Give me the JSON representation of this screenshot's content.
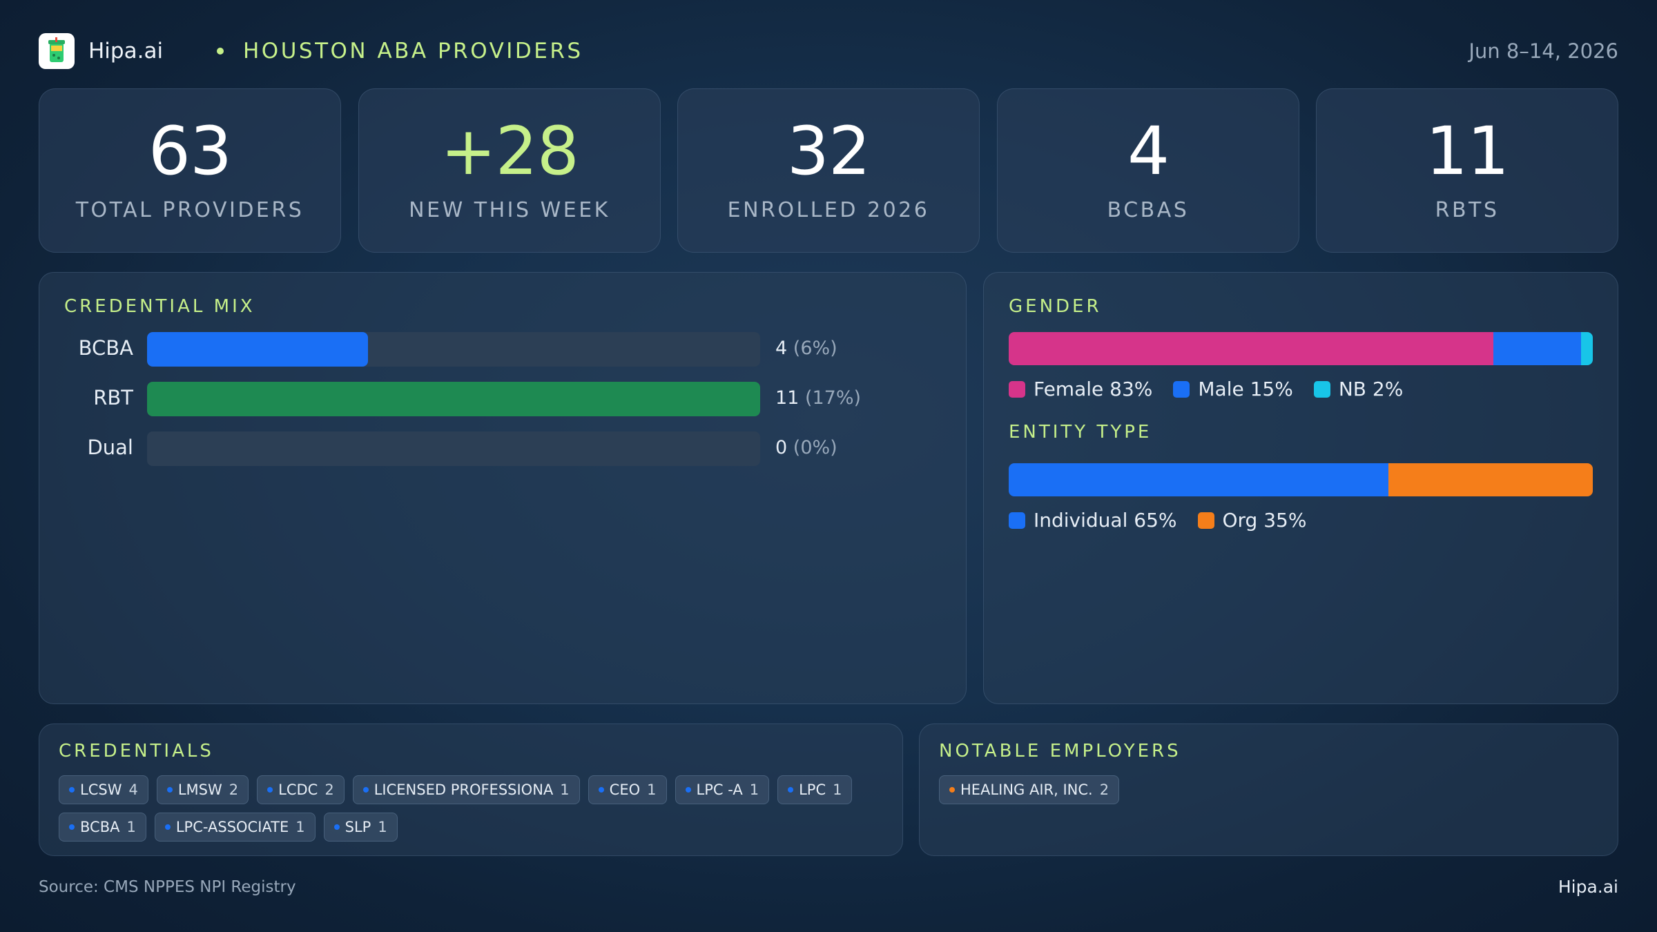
{
  "header": {
    "brand": "Hipa.ai",
    "title": "HOUSTON ABA PROVIDERS",
    "date_range": "Jun 8–14, 2026",
    "logo_icon": "cup-icon"
  },
  "kpis": [
    {
      "value": "63",
      "label": "TOTAL  PROVIDERS"
    },
    {
      "value": "+28",
      "label": "NEW THIS WEEK"
    },
    {
      "value": "32",
      "label": "ENROLLED 2026"
    },
    {
      "value": "4",
      "label": "BCBAS"
    },
    {
      "value": "11",
      "label": "RBTS"
    }
  ],
  "credential_mix": {
    "title": "CREDENTIAL  MIX",
    "rows": [
      {
        "name": "BCBA",
        "count": "4",
        "pct": "(6%)",
        "fill": 0.36,
        "color": "#1a6ff5"
      },
      {
        "name": "RBT",
        "count": "11",
        "pct": "(17%)",
        "fill": 1.0,
        "color": "#1e8a52"
      },
      {
        "name": "Dual",
        "count": "0",
        "pct": "(0%)",
        "fill": 0.0,
        "color": "#1a6ff5"
      }
    ]
  },
  "gender": {
    "title": "GENDER",
    "segments": [
      {
        "label": "Female 83%",
        "share": 83,
        "color": "#d6348a"
      },
      {
        "label": "Male 15%",
        "share": 15,
        "color": "#1a6ff5"
      },
      {
        "label": "NB 2%",
        "share": 2,
        "color": "#18c5e8"
      }
    ]
  },
  "entity_type": {
    "title": "ENTITY  TYPE",
    "segments": [
      {
        "label": "Individual 65%",
        "share": 65,
        "color": "#1a6ff5"
      },
      {
        "label": "Org 35%",
        "share": 35,
        "color": "#f57e1a"
      }
    ]
  },
  "credentials": {
    "title": "CREDENTIALS",
    "items": [
      {
        "name": "LCSW",
        "count": "4"
      },
      {
        "name": "LMSW",
        "count": "2"
      },
      {
        "name": "LCDC",
        "count": "2"
      },
      {
        "name": "LICENSED PROFESSIONA",
        "count": "1"
      },
      {
        "name": "CEO",
        "count": "1"
      },
      {
        "name": "LPC -A",
        "count": "1"
      },
      {
        "name": "LPC",
        "count": "1"
      },
      {
        "name": "BCBA",
        "count": "1"
      },
      {
        "name": "LPC-ASSOCIATE",
        "count": "1"
      },
      {
        "name": "SLP",
        "count": "1"
      }
    ],
    "bullet_color": "#1a6ff5"
  },
  "employers": {
    "title": "NOTABLE  EMPLOYERS",
    "items": [
      {
        "name": "HEALING AIR, INC.",
        "count": "2"
      }
    ],
    "bullet_color": "#f57e1a"
  },
  "footer": {
    "source": "Source: CMS NPPES NPI Registry",
    "brand": "Hipa.ai"
  }
}
